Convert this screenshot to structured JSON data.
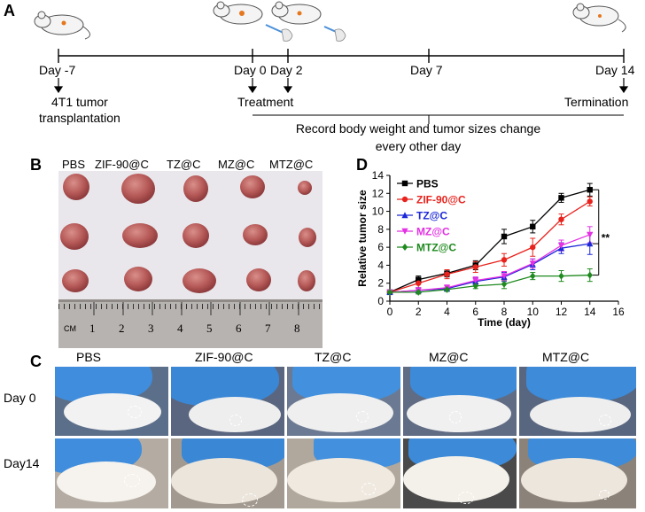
{
  "panels": {
    "a": "A",
    "b": "B",
    "c": "C",
    "d": "D"
  },
  "timeline": {
    "days": [
      {
        "label": "Day -7"
      },
      {
        "label": "Day 0"
      },
      {
        "label": "Day 2"
      },
      {
        "label": "Day 7"
      },
      {
        "label": "Day 14"
      }
    ],
    "event_transplant_line1": "4T1 tumor",
    "event_transplant_line2": "transplantation",
    "event_treatment": "Treatment",
    "event_termination": "Termination",
    "record_line1": "Record body weight and tumor sizes change",
    "record_line2": "every other day"
  },
  "tumor_photo": {
    "groups": [
      "PBS",
      "ZIF-90@C",
      "TZ@C",
      "MZ@C",
      "MTZ@C"
    ],
    "ruler_unit": "CM",
    "ruler_numbers": [
      "1",
      "2",
      "3",
      "4",
      "5",
      "6",
      "7",
      "8"
    ]
  },
  "mouse_photos": {
    "groups": [
      "PBS",
      "ZIF-90@C",
      "TZ@C",
      "MZ@C",
      "MTZ@C"
    ],
    "rows": [
      "Day 0",
      "Day14"
    ]
  },
  "colors": {
    "PBS": "#000000",
    "ZIF-90@C": "#e8231d",
    "TZ@C": "#1c28d8",
    "MZ@C": "#e331e3",
    "MTZ@C": "#1f8a1f"
  },
  "chart_data": {
    "type": "line",
    "xlabel": "Time (day)",
    "ylabel": "Relative tumor size",
    "xlim": [
      0,
      16
    ],
    "ylim": [
      0,
      14
    ],
    "xticks": [
      0,
      2,
      4,
      6,
      8,
      10,
      12,
      14,
      16
    ],
    "yticks": [
      0,
      2,
      4,
      6,
      8,
      10,
      12,
      14
    ],
    "legend_position": "top-left",
    "significance": "**",
    "x": [
      0,
      2,
      4,
      6,
      8,
      10,
      12,
      14
    ],
    "series": [
      {
        "name": "PBS",
        "color": "#000000",
        "marker": "square",
        "values": [
          1.0,
          2.4,
          3.1,
          4.0,
          7.2,
          8.3,
          11.5,
          12.4
        ],
        "errors": [
          0.1,
          0.4,
          0.4,
          0.5,
          0.8,
          0.7,
          0.5,
          0.7
        ]
      },
      {
        "name": "ZIF-90@C",
        "color": "#e8231d",
        "marker": "circle",
        "values": [
          1.0,
          2.0,
          3.0,
          3.8,
          4.6,
          6.0,
          9.1,
          11.1
        ],
        "errors": [
          0.1,
          0.6,
          0.5,
          0.6,
          0.7,
          1.0,
          0.6,
          0.5
        ]
      },
      {
        "name": "TZ@C",
        "color": "#1c28d8",
        "marker": "triangle-up",
        "values": [
          1.0,
          1.2,
          1.4,
          2.2,
          2.7,
          4.1,
          5.9,
          6.4
        ],
        "errors": [
          0.1,
          0.3,
          0.3,
          0.4,
          0.5,
          0.6,
          0.6,
          1.2
        ]
      },
      {
        "name": "MZ@C",
        "color": "#e331e3",
        "marker": "triangle-down",
        "values": [
          1.0,
          1.2,
          1.5,
          2.3,
          2.8,
          4.2,
          6.2,
          7.4
        ],
        "errors": [
          0.1,
          0.3,
          0.3,
          0.4,
          0.5,
          0.5,
          0.6,
          0.9
        ]
      },
      {
        "name": "MTZ@C",
        "color": "#1f8a1f",
        "marker": "diamond",
        "values": [
          1.0,
          1.0,
          1.3,
          1.7,
          1.9,
          2.8,
          2.8,
          2.9
        ],
        "errors": [
          0.1,
          0.2,
          0.2,
          0.3,
          0.5,
          0.4,
          0.6,
          0.7
        ]
      }
    ]
  }
}
